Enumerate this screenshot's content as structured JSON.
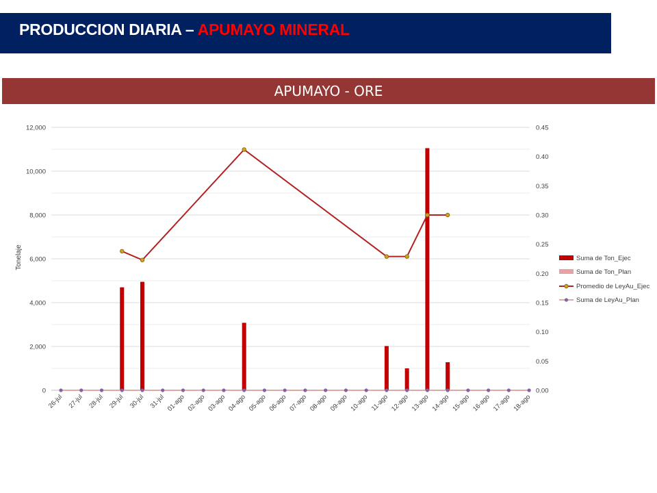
{
  "header": {
    "title_prefix": "PRODUCCION DIARIA – ",
    "title_accent": "APUMAYO MINERAL"
  },
  "colors": {
    "header_bg": "#002060",
    "accent": "#ff0000",
    "chart_header_bg": "#943634",
    "ton_ejec": "#c00000",
    "ton_plan": "#e6a3a3",
    "ley_ejec_line": "#b22222",
    "ley_ejec_marker": "#c9a227",
    "ley_plan": "#d98c8c",
    "ley_plan_marker": "#8064a2"
  },
  "chart_data": {
    "type": "bar",
    "title": "APUMAYO - ORE",
    "ylabel": "Tonelaje",
    "ylim": [
      0,
      12000
    ],
    "y_ticks": [
      "0",
      "2,000",
      "4,000",
      "6,000",
      "8,000",
      "10,000",
      "12,000"
    ],
    "y2lim": [
      0,
      0.45
    ],
    "y2_ticks": [
      "0.00",
      "0.05",
      "0.10",
      "0.15",
      "0.20",
      "0.25",
      "0.30",
      "0.35",
      "0.40",
      "0.45"
    ],
    "grid": true,
    "legend_position": "right",
    "categories": [
      "26-jul",
      "27-jul",
      "28-jul",
      "29-jul",
      "30-jul",
      "31-jul",
      "01-ago",
      "02-ago",
      "03-ago",
      "04-ago",
      "05-ago",
      "06-ago",
      "07-ago",
      "08-ago",
      "09-ago",
      "10-ago",
      "11-ago",
      "12-ago",
      "13-ago",
      "14-ago",
      "15-ago",
      "16-ago",
      "17-ago",
      "18-ago"
    ],
    "series": [
      {
        "name": "Suma de Ton_Ejec",
        "kind": "bar",
        "axis": "left",
        "values": [
          0,
          0,
          0,
          4700,
          4950,
          0,
          0,
          0,
          0,
          3080,
          0,
          0,
          0,
          0,
          0,
          0,
          2020,
          1000,
          11050,
          1280,
          0,
          0,
          0,
          0
        ]
      },
      {
        "name": "Suma de Ton_Plan",
        "kind": "bar",
        "axis": "left",
        "values": [
          0,
          0,
          0,
          0,
          0,
          0,
          0,
          0,
          0,
          0,
          0,
          0,
          0,
          0,
          0,
          0,
          0,
          0,
          0,
          0,
          0,
          0,
          0,
          0
        ]
      },
      {
        "name": "Promedio de LeyAu_Ejec",
        "kind": "line",
        "axis": "right",
        "values": [
          null,
          null,
          null,
          0.238,
          0.223,
          null,
          null,
          null,
          null,
          0.412,
          null,
          null,
          null,
          null,
          null,
          null,
          0.229,
          0.229,
          0.3,
          0.3,
          null,
          null,
          null,
          null
        ]
      },
      {
        "name": "Suma de LeyAu_Plan",
        "kind": "line",
        "axis": "right",
        "values": [
          0,
          0,
          0,
          0,
          0,
          0,
          0,
          0,
          0,
          0,
          0,
          0,
          0,
          0,
          0,
          0,
          0,
          0,
          0,
          0,
          0,
          0,
          0,
          0
        ]
      }
    ]
  }
}
